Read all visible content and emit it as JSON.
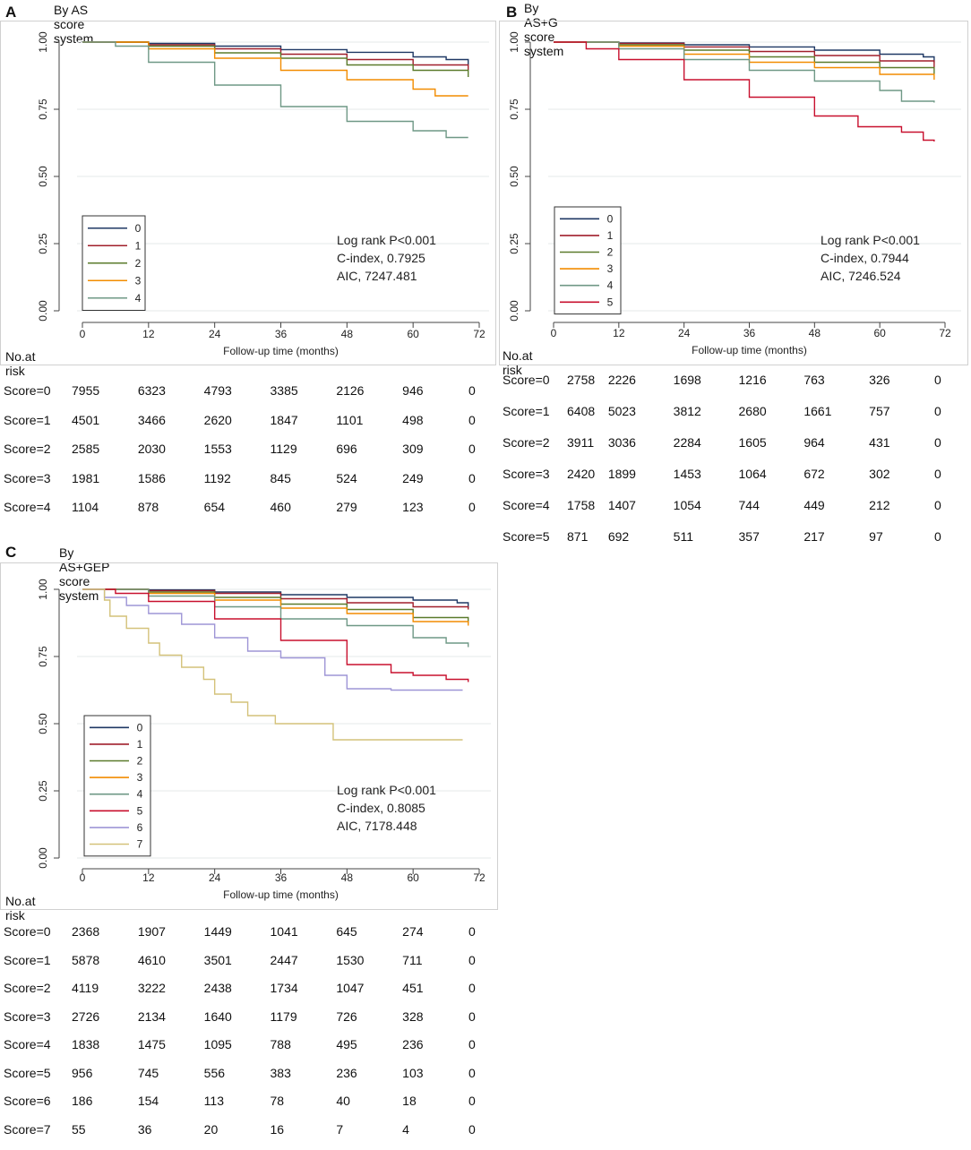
{
  "chart_data": [
    {
      "type": "line",
      "panel_letter": "A",
      "title": "By AS score system",
      "xlabel": "Follow-up time (months)",
      "ylabel": "",
      "xlim": [
        0,
        72
      ],
      "ylim": [
        0,
        1
      ],
      "xticks": [
        0,
        12,
        24,
        36,
        48,
        60,
        72
      ],
      "yticks": [
        "0.00",
        "0.25",
        "0.50",
        "0.75",
        "1.00"
      ],
      "grid": true,
      "legend_placement": "bottom-left",
      "annotations": [
        "Log rank P<0.001",
        "C-index, 0.7925",
        "AIC, 7247.481"
      ],
      "series": [
        {
          "name": "0",
          "color": "#1f3864",
          "points": [
            [
              0,
              1
            ],
            [
              12,
              0.995
            ],
            [
              24,
              0.985
            ],
            [
              36,
              0.972
            ],
            [
              48,
              0.962
            ],
            [
              60,
              0.945
            ],
            [
              66,
              0.935
            ],
            [
              70,
              0.915
            ]
          ]
        },
        {
          "name": "1",
          "color": "#a01f2b",
          "points": [
            [
              0,
              1
            ],
            [
              12,
              0.99
            ],
            [
              24,
              0.975
            ],
            [
              36,
              0.955
            ],
            [
              48,
              0.935
            ],
            [
              60,
              0.915
            ],
            [
              70,
              0.895
            ]
          ]
        },
        {
          "name": "2",
          "color": "#5b7b2c",
          "points": [
            [
              0,
              1
            ],
            [
              12,
              0.985
            ],
            [
              24,
              0.96
            ],
            [
              36,
              0.94
            ],
            [
              48,
              0.915
            ],
            [
              60,
              0.895
            ],
            [
              70,
              0.87
            ]
          ]
        },
        {
          "name": "3",
          "color": "#f28c00",
          "points": [
            [
              0,
              1
            ],
            [
              12,
              0.975
            ],
            [
              24,
              0.94
            ],
            [
              36,
              0.895
            ],
            [
              48,
              0.86
            ],
            [
              60,
              0.825
            ],
            [
              64,
              0.8
            ],
            [
              70,
              0.8
            ]
          ]
        },
        {
          "name": "4",
          "color": "#6f9886",
          "points": [
            [
              0,
              1
            ],
            [
              6,
              0.985
            ],
            [
              12,
              0.925
            ],
            [
              24,
              0.84
            ],
            [
              36,
              0.76
            ],
            [
              48,
              0.705
            ],
            [
              60,
              0.67
            ],
            [
              66,
              0.645
            ],
            [
              70,
              0.645
            ]
          ]
        }
      ],
      "risk_table": {
        "header": "No.at risk",
        "rows": [
          {
            "label": "Score=0",
            "values": [
              "7955",
              "6323",
              "4793",
              "3385",
              "2126",
              "946",
              "0"
            ]
          },
          {
            "label": "Score=1",
            "values": [
              "4501",
              "3466",
              "2620",
              "1847",
              "1101",
              "498",
              "0"
            ]
          },
          {
            "label": "Score=2",
            "values": [
              "2585",
              "2030",
              "1553",
              "1129",
              "696",
              "309",
              "0"
            ]
          },
          {
            "label": "Score=3",
            "values": [
              "1981",
              "1586",
              "1192",
              "845",
              "524",
              "249",
              "0"
            ]
          },
          {
            "label": "Score=4",
            "values": [
              "1104",
              "878",
              "654",
              "460",
              "279",
              "123",
              "0"
            ]
          }
        ]
      }
    },
    {
      "type": "line",
      "panel_letter": "B",
      "title": "By AS+G score system",
      "xlabel": "Follow-up time (months)",
      "ylabel": "",
      "xlim": [
        0,
        72
      ],
      "ylim": [
        0,
        1
      ],
      "xticks": [
        0,
        12,
        24,
        36,
        48,
        60,
        72
      ],
      "yticks": [
        "0.00",
        "0.25",
        "0.50",
        "0.75",
        "1.00"
      ],
      "grid": true,
      "legend_placement": "bottom-left",
      "annotations": [
        "Log rank P<0.001",
        "C-index,  0.7944",
        "AIC, 7246.524"
      ],
      "series": [
        {
          "name": "0",
          "color": "#1f3864",
          "points": [
            [
              0,
              1
            ],
            [
              12,
              0.997
            ],
            [
              24,
              0.99
            ],
            [
              36,
              0.982
            ],
            [
              48,
              0.97
            ],
            [
              60,
              0.955
            ],
            [
              68,
              0.945
            ],
            [
              70,
              0.925
            ]
          ]
        },
        {
          "name": "1",
          "color": "#a01f2b",
          "points": [
            [
              0,
              1
            ],
            [
              12,
              0.995
            ],
            [
              24,
              0.982
            ],
            [
              36,
              0.965
            ],
            [
              48,
              0.95
            ],
            [
              60,
              0.93
            ],
            [
              70,
              0.905
            ]
          ]
        },
        {
          "name": "2",
          "color": "#5b7b2c",
          "points": [
            [
              0,
              1
            ],
            [
              12,
              0.99
            ],
            [
              24,
              0.97
            ],
            [
              36,
              0.945
            ],
            [
              48,
              0.925
            ],
            [
              60,
              0.905
            ],
            [
              70,
              0.88
            ]
          ]
        },
        {
          "name": "3",
          "color": "#f28c00",
          "points": [
            [
              0,
              1
            ],
            [
              12,
              0.985
            ],
            [
              24,
              0.955
            ],
            [
              36,
              0.925
            ],
            [
              48,
              0.905
            ],
            [
              60,
              0.88
            ],
            [
              70,
              0.86
            ]
          ]
        },
        {
          "name": "4",
          "color": "#6f9886",
          "points": [
            [
              0,
              1
            ],
            [
              12,
              0.975
            ],
            [
              24,
              0.935
            ],
            [
              36,
              0.895
            ],
            [
              48,
              0.855
            ],
            [
              60,
              0.82
            ],
            [
              64,
              0.78
            ],
            [
              70,
              0.775
            ]
          ]
        },
        {
          "name": "5",
          "color": "#c8102e",
          "points": [
            [
              0,
              1
            ],
            [
              6,
              0.975
            ],
            [
              12,
              0.935
            ],
            [
              24,
              0.86
            ],
            [
              36,
              0.795
            ],
            [
              48,
              0.725
            ],
            [
              56,
              0.685
            ],
            [
              64,
              0.665
            ],
            [
              68,
              0.635
            ],
            [
              70,
              0.63
            ]
          ]
        }
      ],
      "risk_table": {
        "header": "No.at risk",
        "rows": [
          {
            "label": "Score=0",
            "values": [
              "2758",
              "2226",
              "1698",
              "1216",
              "763",
              "326",
              "0"
            ]
          },
          {
            "label": "Score=1",
            "values": [
              "6408",
              "5023",
              "3812",
              "2680",
              "1661",
              "757",
              "0"
            ]
          },
          {
            "label": "Score=2",
            "values": [
              "3911",
              "3036",
              "2284",
              "1605",
              "964",
              "431",
              "0"
            ]
          },
          {
            "label": "Score=3",
            "values": [
              "2420",
              "1899",
              "1453",
              "1064",
              "672",
              "302",
              "0"
            ]
          },
          {
            "label": "Score=4",
            "values": [
              "1758",
              "1407",
              "1054",
              "744",
              "449",
              "212",
              "0"
            ]
          },
          {
            "label": "Score=5",
            "values": [
              "871",
              "692",
              "511",
              "357",
              "217",
              "97",
              "0"
            ]
          }
        ]
      }
    },
    {
      "type": "line",
      "panel_letter": "C",
      "title": "By AS+GEP score system",
      "xlabel": "Follow-up time (months)",
      "ylabel": "",
      "xlim": [
        0,
        72
      ],
      "ylim": [
        0,
        1
      ],
      "xticks": [
        0,
        12,
        24,
        36,
        48,
        60,
        72
      ],
      "yticks": [
        "0.00",
        "0.25",
        "0.50",
        "0.75",
        "1.00"
      ],
      "grid": true,
      "legend_placement": "bottom-left",
      "annotations": [
        "Log rank P<0.001",
        "C-index, 0.8085",
        "AIC, 7178.448"
      ],
      "series": [
        {
          "name": "0",
          "color": "#1f3864",
          "points": [
            [
              0,
              1
            ],
            [
              12,
              0.998
            ],
            [
              24,
              0.99
            ],
            [
              36,
              0.98
            ],
            [
              48,
              0.97
            ],
            [
              60,
              0.96
            ],
            [
              68,
              0.95
            ],
            [
              70,
              0.93
            ]
          ]
        },
        {
          "name": "1",
          "color": "#a01f2b",
          "points": [
            [
              0,
              1
            ],
            [
              12,
              0.995
            ],
            [
              24,
              0.985
            ],
            [
              36,
              0.965
            ],
            [
              48,
              0.95
            ],
            [
              60,
              0.935
            ],
            [
              70,
              0.925
            ]
          ]
        },
        {
          "name": "2",
          "color": "#5b7b2c",
          "points": [
            [
              0,
              1
            ],
            [
              12,
              0.99
            ],
            [
              24,
              0.97
            ],
            [
              36,
              0.945
            ],
            [
              48,
              0.925
            ],
            [
              60,
              0.895
            ],
            [
              70,
              0.875
            ]
          ]
        },
        {
          "name": "3",
          "color": "#f28c00",
          "points": [
            [
              0,
              1
            ],
            [
              12,
              0.985
            ],
            [
              24,
              0.96
            ],
            [
              36,
              0.93
            ],
            [
              48,
              0.91
            ],
            [
              60,
              0.88
            ],
            [
              70,
              0.865
            ]
          ]
        },
        {
          "name": "4",
          "color": "#6f9886",
          "points": [
            [
              0,
              1
            ],
            [
              12,
              0.975
            ],
            [
              24,
              0.935
            ],
            [
              36,
              0.89
            ],
            [
              48,
              0.865
            ],
            [
              60,
              0.82
            ],
            [
              66,
              0.8
            ],
            [
              70,
              0.785
            ]
          ]
        },
        {
          "name": "5",
          "color": "#c8102e",
          "points": [
            [
              0,
              1
            ],
            [
              6,
              0.985
            ],
            [
              12,
              0.955
            ],
            [
              24,
              0.89
            ],
            [
              36,
              0.81
            ],
            [
              48,
              0.72
            ],
            [
              56,
              0.69
            ],
            [
              60,
              0.68
            ],
            [
              66,
              0.665
            ],
            [
              70,
              0.655
            ]
          ]
        },
        {
          "name": "6",
          "color": "#9e95d6",
          "points": [
            [
              0,
              1
            ],
            [
              4,
              0.97
            ],
            [
              8,
              0.94
            ],
            [
              12,
              0.91
            ],
            [
              18,
              0.87
            ],
            [
              24,
              0.82
            ],
            [
              30,
              0.77
            ],
            [
              36,
              0.745
            ],
            [
              44,
              0.68
            ],
            [
              48,
              0.63
            ],
            [
              56,
              0.625
            ],
            [
              69,
              0.625
            ]
          ]
        },
        {
          "name": "7",
          "color": "#d4c27a",
          "points": [
            [
              0,
              1
            ],
            [
              4,
              0.96
            ],
            [
              5,
              0.9
            ],
            [
              8,
              0.855
            ],
            [
              12,
              0.8
            ],
            [
              14,
              0.755
            ],
            [
              18,
              0.71
            ],
            [
              22,
              0.665
            ],
            [
              24,
              0.61
            ],
            [
              27,
              0.58
            ],
            [
              30,
              0.53
            ],
            [
              35,
              0.5
            ],
            [
              45,
              0.5
            ],
            [
              45.5,
              0.44
            ],
            [
              69,
              0.44
            ]
          ]
        }
      ],
      "risk_table": {
        "header": "No.at risk",
        "rows": [
          {
            "label": "Score=0",
            "values": [
              "2368",
              "1907",
              "1449",
              "1041",
              "645",
              "274",
              "0"
            ]
          },
          {
            "label": "Score=1",
            "values": [
              "5878",
              "4610",
              "3501",
              "2447",
              "1530",
              "711",
              "0"
            ]
          },
          {
            "label": "Score=2",
            "values": [
              "4119",
              "3222",
              "2438",
              "1734",
              "1047",
              "451",
              "0"
            ]
          },
          {
            "label": "Score=3",
            "values": [
              "2726",
              "2134",
              "1640",
              "1179",
              "726",
              "328",
              "0"
            ]
          },
          {
            "label": "Score=4",
            "values": [
              "1838",
              "1475",
              "1095",
              "788",
              "495",
              "236",
              "0"
            ]
          },
          {
            "label": "Score=5",
            "values": [
              "956",
              "745",
              "556",
              "383",
              "236",
              "103",
              "0"
            ]
          },
          {
            "label": "Score=6",
            "values": [
              "186",
              "154",
              "113",
              "78",
              "40",
              "18",
              "0"
            ]
          },
          {
            "label": "Score=7",
            "values": [
              "55",
              "36",
              "20",
              "16",
              "7",
              "4",
              "0"
            ]
          }
        ]
      }
    }
  ]
}
